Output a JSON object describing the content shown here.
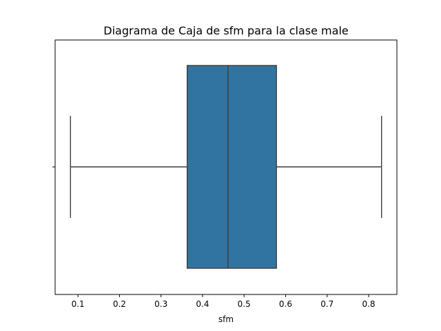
{
  "chart_data": {
    "type": "box",
    "title": "Diagrama de Caja de sfm para la clase male",
    "xlabel": "sfm",
    "ylabel": "",
    "orientation": "horizontal",
    "xlim": [
      0.045,
      0.868
    ],
    "xticks": [
      0.1,
      0.2,
      0.3,
      0.4,
      0.5,
      0.6,
      0.7,
      0.8
    ],
    "xtick_labels": [
      "0.1",
      "0.2",
      "0.3",
      "0.4",
      "0.5",
      "0.6",
      "0.7",
      "0.8"
    ],
    "grid": false,
    "legend": "none",
    "box": {
      "whisker_low": 0.082,
      "q1": 0.363,
      "median": 0.461,
      "q3": 0.578,
      "whisker_high": 0.831
    },
    "colors": {
      "box_fill": "#3274a1",
      "line": "#3d3d3d",
      "axes": "#000000"
    }
  }
}
